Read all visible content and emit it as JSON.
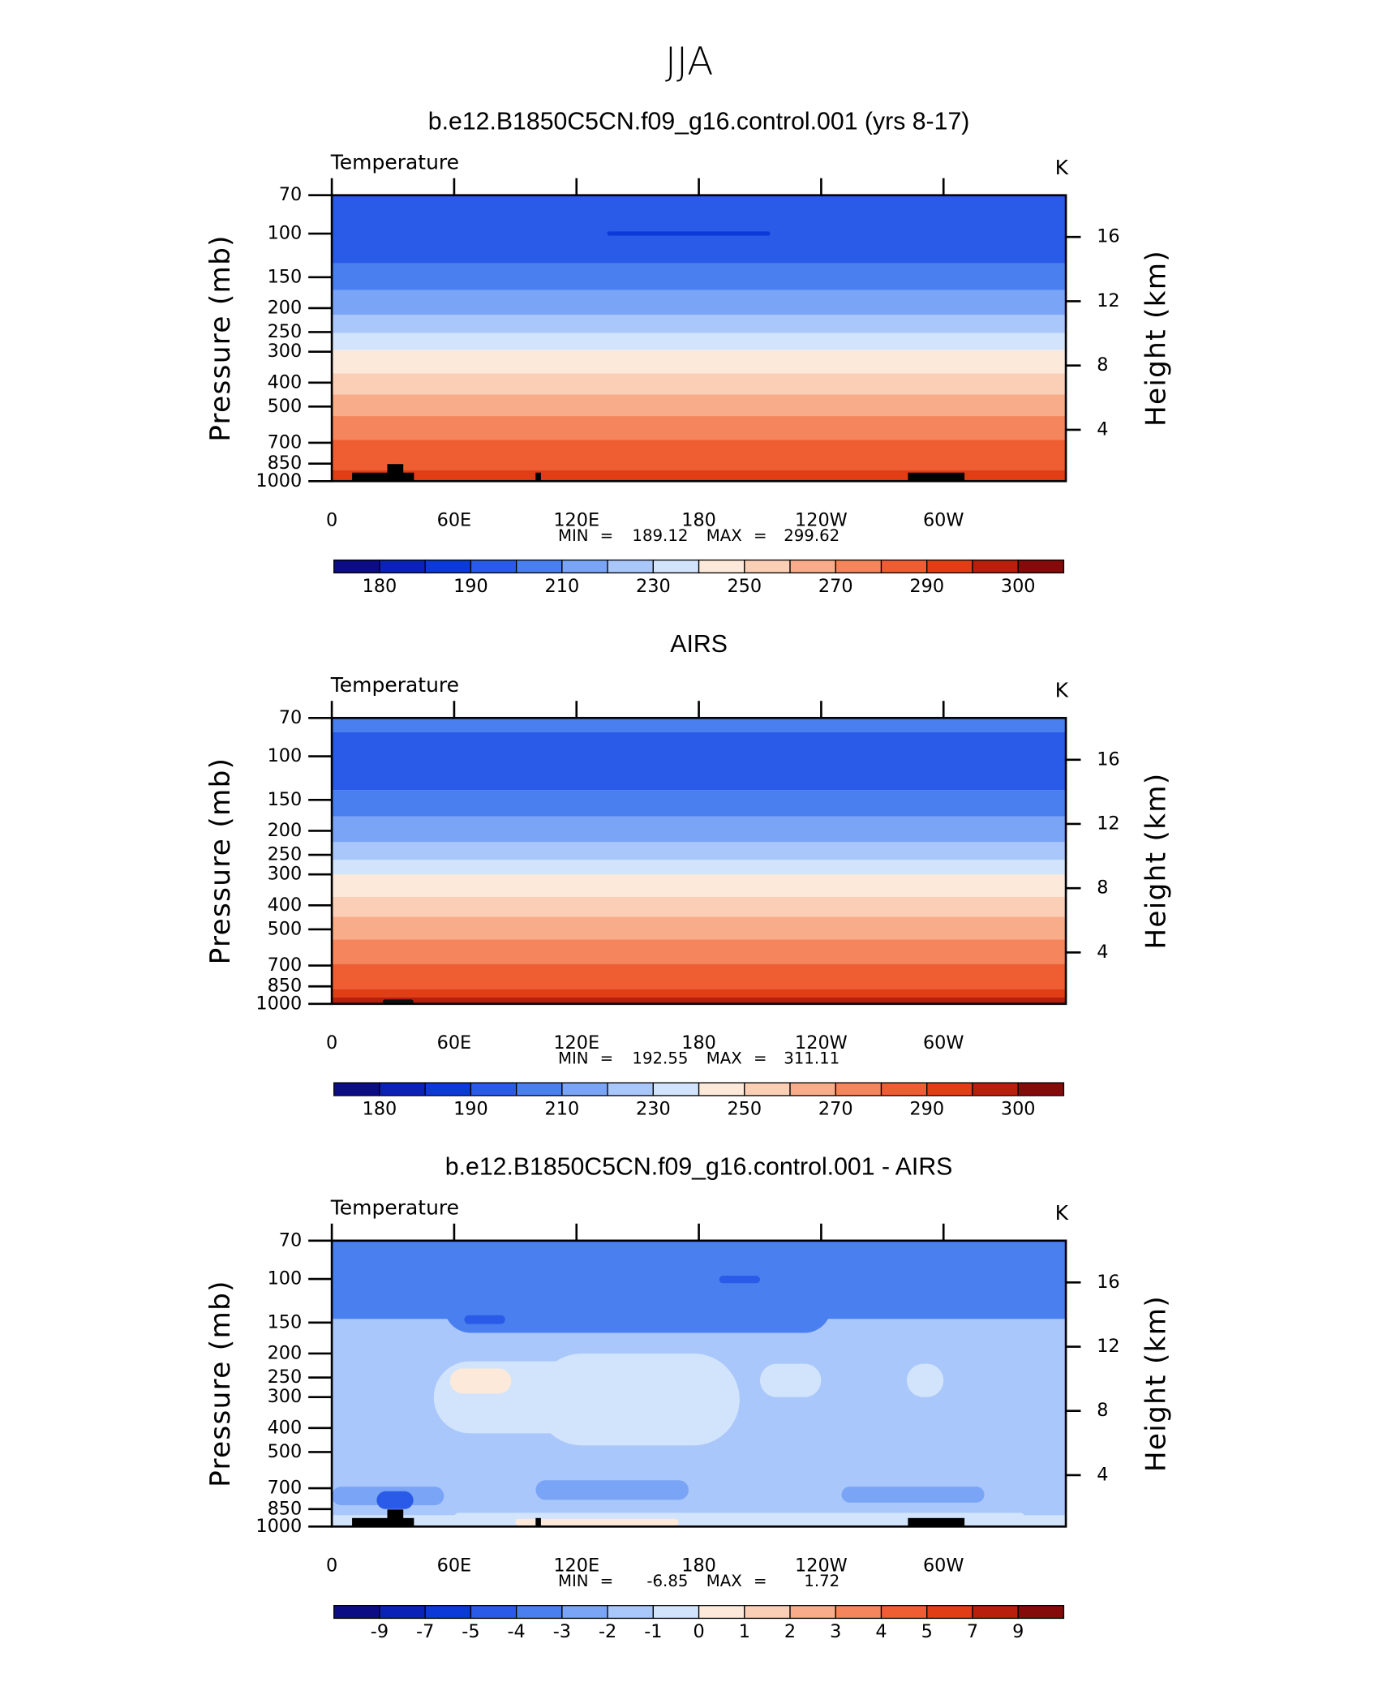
{
  "title": "JJA",
  "chart_data": [
    {
      "type": "contour",
      "title": "b.e12.B1850C5CN.f09_g16.control.001 (yrs 8-17)",
      "left_title": "Temperature",
      "units": "K",
      "ylabel": "Pressure (mb)",
      "y2label": "Height (km)",
      "xlim": [
        0,
        360
      ],
      "xticks": [
        0,
        {
          "value": 60,
          "label": "60E"
        },
        {
          "value": 120,
          "label": "120E"
        },
        180,
        {
          "value": 240,
          "label": "120W"
        },
        {
          "value": 300,
          "label": "60W"
        }
      ],
      "ylim": [
        1000,
        70
      ],
      "yscale": "log",
      "yticks": [
        70,
        100,
        150,
        200,
        250,
        300,
        400,
        500,
        700,
        850,
        1000
      ],
      "y2lim": [
        0.8,
        18.6
      ],
      "y2ticks": [
        4,
        8,
        12,
        16
      ],
      "min_label": "MIN =",
      "min": 189.12,
      "max_label": "MAX =",
      "max": 299.62,
      "terrain": true,
      "layers": [
        {
          "p": [
            1000,
            900
          ],
          "color": "#e23e16"
        },
        {
          "p": [
            900,
            680
          ],
          "color": "#ef5e33"
        },
        {
          "p": [
            680,
            546
          ],
          "color": "#f4855c"
        },
        {
          "p": [
            546,
            447
          ],
          "color": "#f8ac8a"
        },
        {
          "p": [
            447,
            367
          ],
          "color": "#fbcfb6"
        },
        {
          "p": [
            367,
            295
          ],
          "color": "#fde9da"
        },
        {
          "p": [
            295,
            252
          ],
          "color": "#d2e4fb"
        },
        {
          "p": [
            252,
            213
          ],
          "color": "#a9c7fa"
        },
        {
          "p": [
            213,
            169
          ],
          "color": "#7aa4f5"
        },
        {
          "p": [
            169,
            132
          ],
          "color": "#4a7ff0"
        },
        {
          "p": [
            132,
            70
          ],
          "color": "#2a5be8"
        }
      ],
      "patches": [
        {
          "lon": [
            135,
            215
          ],
          "p": [
            102,
            98
          ],
          "color": "#0c3ad8"
        }
      ],
      "colorbar": {
        "levels": [
          180,
          null,
          190,
          null,
          210,
          null,
          230,
          null,
          250,
          null,
          270,
          null,
          290,
          null,
          300
        ],
        "colors": [
          "#0c0c84",
          "#0b22b8",
          "#0c3ad8",
          "#2a5be8",
          "#4a7ff0",
          "#7aa4f5",
          "#a9c7fa",
          "#d2e4fb",
          "#fde9da",
          "#fbcfb6",
          "#f8ac8a",
          "#f4855c",
          "#ef5e33",
          "#e23e16",
          "#b81f0c",
          "#850a0a"
        ]
      }
    },
    {
      "type": "contour",
      "title": "AIRS",
      "left_title": "Temperature",
      "units": "K",
      "ylabel": "Pressure (mb)",
      "y2label": "Height (km)",
      "xlim": [
        0,
        360
      ],
      "xticks": [
        0,
        {
          "value": 60,
          "label": "60E"
        },
        {
          "value": 120,
          "label": "120E"
        },
        180,
        {
          "value": 240,
          "label": "120W"
        },
        {
          "value": 300,
          "label": "60W"
        }
      ],
      "ylim": [
        1000,
        70
      ],
      "yscale": "log",
      "yticks": [
        70,
        100,
        150,
        200,
        250,
        300,
        400,
        500,
        700,
        850,
        1000
      ],
      "y2lim": [
        0.8,
        18.6
      ],
      "y2ticks": [
        4,
        8,
        12,
        16
      ],
      "min_label": "MIN =",
      "min": 192.55,
      "max_label": "MAX =",
      "max": 311.11,
      "terrain": false,
      "layers": [
        {
          "p": [
            1000,
            940
          ],
          "color": "#b81f0c"
        },
        {
          "p": [
            940,
            870
          ],
          "color": "#e23e16"
        },
        {
          "p": [
            870,
            690
          ],
          "color": "#ef5e33"
        },
        {
          "p": [
            690,
            550
          ],
          "color": "#f4855c"
        },
        {
          "p": [
            550,
            445
          ],
          "color": "#f8ac8a"
        },
        {
          "p": [
            445,
            370
          ],
          "color": "#fbcfb6"
        },
        {
          "p": [
            370,
            300
          ],
          "color": "#fde9da"
        },
        {
          "p": [
            300,
            262
          ],
          "color": "#d2e4fb"
        },
        {
          "p": [
            262,
            222
          ],
          "color": "#a9c7fa"
        },
        {
          "p": [
            222,
            175
          ],
          "color": "#7aa4f5"
        },
        {
          "p": [
            175,
            137
          ],
          "color": "#4a7ff0"
        },
        {
          "p": [
            137,
            80
          ],
          "color": "#2a5be8"
        },
        {
          "p": [
            80,
            70
          ],
          "color": "#4a7ff0"
        }
      ],
      "patches": [
        {
          "lon": [
            25,
            40
          ],
          "p": [
            1000,
            960
          ],
          "color": "#111111"
        }
      ],
      "colorbar": {
        "levels": [
          180,
          null,
          190,
          null,
          210,
          null,
          230,
          null,
          250,
          null,
          270,
          null,
          290,
          null,
          300
        ],
        "colors": [
          "#0c0c84",
          "#0b22b8",
          "#0c3ad8",
          "#2a5be8",
          "#4a7ff0",
          "#7aa4f5",
          "#a9c7fa",
          "#d2e4fb",
          "#fde9da",
          "#fbcfb6",
          "#f8ac8a",
          "#f4855c",
          "#ef5e33",
          "#e23e16",
          "#b81f0c",
          "#850a0a"
        ]
      }
    },
    {
      "type": "contour",
      "title": "b.e12.B1850C5CN.f09_g16.control.001 - AIRS",
      "left_title": "Temperature",
      "units": "K",
      "ylabel": "Pressure (mb)",
      "y2label": "Height (km)",
      "xlim": [
        0,
        360
      ],
      "xticks": [
        0,
        {
          "value": 60,
          "label": "60E"
        },
        {
          "value": 120,
          "label": "120E"
        },
        180,
        {
          "value": 240,
          "label": "120W"
        },
        {
          "value": 300,
          "label": "60W"
        }
      ],
      "ylim": [
        1000,
        70
      ],
      "yscale": "log",
      "yticks": [
        70,
        100,
        150,
        200,
        250,
        300,
        400,
        500,
        700,
        850,
        1000
      ],
      "y2lim": [
        0.8,
        18.6
      ],
      "y2ticks": [
        4,
        8,
        12,
        16
      ],
      "min_label": "MIN =",
      "min": -6.85,
      "max_label": "MAX =",
      "max": 1.72,
      "terrain": true,
      "layers": [
        {
          "p": [
            1000,
            900
          ],
          "color": "#d2e4fb"
        },
        {
          "p": [
            900,
            145
          ],
          "color": "#a9c7fa"
        },
        {
          "p": [
            145,
            70
          ],
          "color": "#4a7ff0"
        }
      ],
      "patches": [
        {
          "lon": [
            0,
            55
          ],
          "p": [
            820,
            690
          ],
          "color": "#7aa4f5"
        },
        {
          "lon": [
            100,
            175
          ],
          "p": [
            780,
            650
          ],
          "color": "#7aa4f5"
        },
        {
          "lon": [
            250,
            320
          ],
          "p": [
            800,
            690
          ],
          "color": "#7aa4f5"
        },
        {
          "lon": [
            55,
            245
          ],
          "p": [
            165,
            100
          ],
          "color": "#4a7ff0"
        },
        {
          "lon": [
            50,
            130
          ],
          "p": [
            420,
            215
          ],
          "color": "#d2e4fb"
        },
        {
          "lon": [
            100,
            200
          ],
          "p": [
            470,
            200
          ],
          "color": "#d2e4fb"
        },
        {
          "lon": [
            210,
            240
          ],
          "p": [
            300,
            220
          ],
          "color": "#d2e4fb"
        },
        {
          "lon": [
            282,
            300
          ],
          "p": [
            300,
            220
          ],
          "color": "#d2e4fb"
        },
        {
          "lon": [
            60,
            340
          ],
          "p": [
            960,
            880
          ],
          "color": "#d2e4fb"
        },
        {
          "lon": [
            58,
            88
          ],
          "p": [
            290,
            230
          ],
          "color": "#fde9da"
        },
        {
          "lon": [
            90,
            170
          ],
          "p": [
            990,
            930
          ],
          "color": "#fde9da"
        },
        {
          "lon": [
            22,
            40
          ],
          "p": [
            850,
            720
          ],
          "color": "#2a5be8"
        },
        {
          "lon": [
            65,
            85
          ],
          "p": [
            152,
            140
          ],
          "color": "#2a5be8"
        },
        {
          "lon": [
            190,
            210
          ],
          "p": [
            104,
            97
          ],
          "color": "#2a5be8"
        }
      ],
      "colorbar": {
        "levels": [
          -9,
          -7,
          -5,
          -4,
          -3,
          -2,
          -1,
          0,
          1,
          2,
          3,
          4,
          5,
          7,
          9
        ],
        "colors": [
          "#0c0c84",
          "#0b22b8",
          "#0c3ad8",
          "#2a5be8",
          "#4a7ff0",
          "#7aa4f5",
          "#a9c7fa",
          "#d2e4fb",
          "#fde9da",
          "#fbcfb6",
          "#f8ac8a",
          "#f4855c",
          "#ef5e33",
          "#e23e16",
          "#b81f0c",
          "#850a0a"
        ]
      }
    }
  ]
}
